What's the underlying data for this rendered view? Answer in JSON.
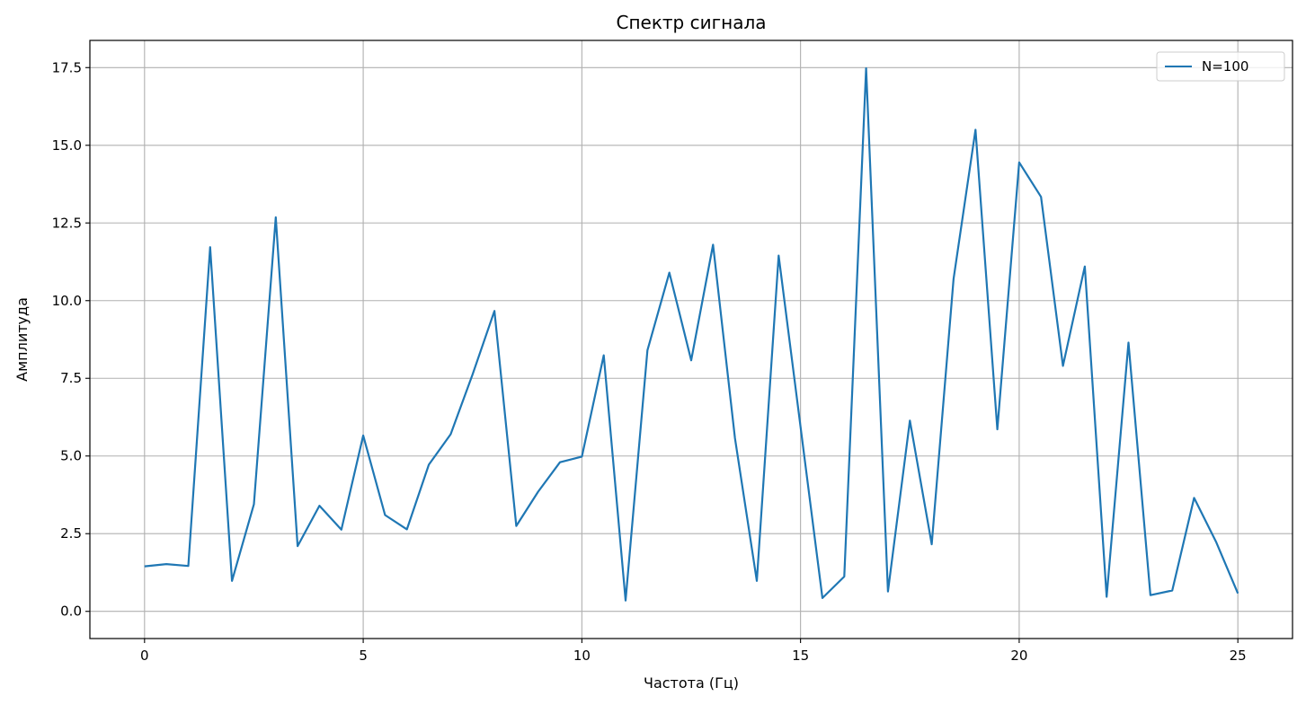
{
  "chart_data": {
    "type": "line",
    "title": "Спектр сигнала",
    "xlabel": "Частота (Гц)",
    "ylabel": "Амплитуда",
    "xlim": [
      -1.25,
      26.25
    ],
    "ylim": [
      -0.875,
      18.375
    ],
    "xticks": [
      0,
      5,
      10,
      15,
      20,
      25
    ],
    "xtick_labels": [
      "0",
      "5",
      "10",
      "15",
      "20",
      "25"
    ],
    "yticks": [
      0,
      2.5,
      5,
      7.5,
      10,
      12.5,
      15,
      17.5
    ],
    "ytick_labels": [
      "0.0",
      "2.5",
      "5.0",
      "7.5",
      "10.0",
      "12.5",
      "15.0",
      "17.5"
    ],
    "grid": true,
    "legend_position": "top-right",
    "series": [
      {
        "name": "N=100",
        "color": "#1f77b4",
        "x": [
          0,
          0.5,
          1,
          1.5,
          2,
          2.5,
          3,
          3.5,
          4,
          4.5,
          5,
          5.5,
          6,
          6.5,
          7,
          7.5,
          8,
          8.5,
          9,
          9.5,
          10,
          10.5,
          11,
          11.5,
          12,
          12.5,
          13,
          13.5,
          14,
          14.5,
          15,
          15.5,
          16,
          16.5,
          17,
          17.5,
          18,
          18.5,
          19,
          19.5,
          20,
          20.5,
          21,
          21.5,
          22,
          22.5,
          23,
          23.5,
          24,
          24.5,
          25
        ],
        "y": [
          1.45,
          1.52,
          1.46,
          11.72,
          0.98,
          3.45,
          12.68,
          2.1,
          3.4,
          2.63,
          5.66,
          3.1,
          2.64,
          4.72,
          5.7,
          7.62,
          9.67,
          2.75,
          3.85,
          4.8,
          4.98,
          8.24,
          0.35,
          8.4,
          10.9,
          8.08,
          11.8,
          5.57,
          0.98,
          11.45,
          5.95,
          0.43,
          1.12,
          17.48,
          0.64,
          6.14,
          2.16,
          10.7,
          15.5,
          5.86,
          14.45,
          13.34,
          7.9,
          11.1,
          0.47,
          8.65,
          0.52,
          0.67,
          3.65,
          2.24,
          0.58
        ]
      }
    ]
  }
}
